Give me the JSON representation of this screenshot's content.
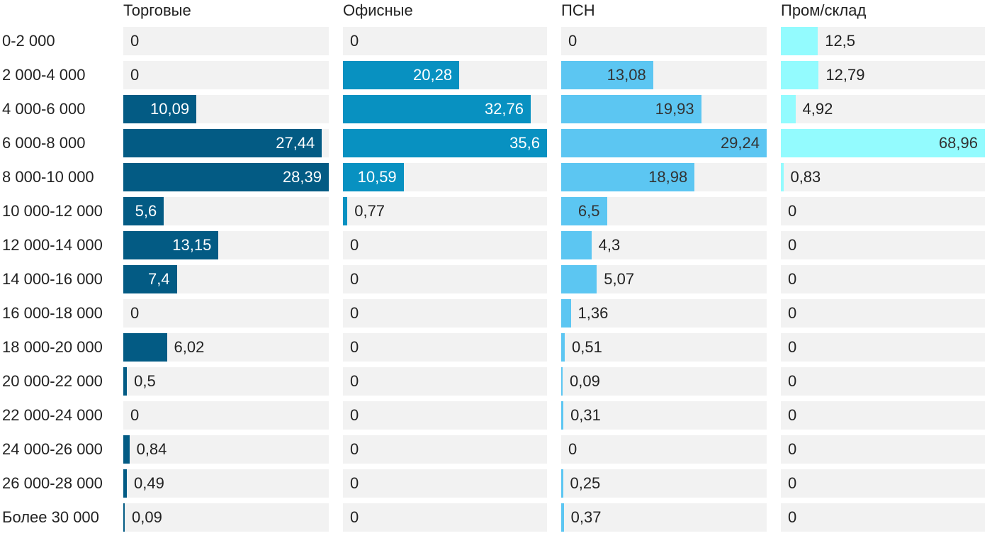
{
  "chart_data": {
    "type": "bar",
    "orientation": "horizontal",
    "layout": "small-multiples",
    "categories": [
      "0-2 000",
      "2 000-4 000",
      "4 000-6 000",
      "6 000-8 000",
      "8 000-10 000",
      "10 000-12 000",
      "12 000-14 000",
      "14 000-16 000",
      "16 000-18 000",
      "18 000-20 000",
      "20 000-22 000",
      "22 000-24 000",
      "24 000-26 000",
      "26 000-28 000",
      "Более 30 000"
    ],
    "series": [
      {
        "name": "Торговые",
        "color": "#035b84",
        "max": 28.39,
        "values": [
          0,
          0,
          10.09,
          27.44,
          28.39,
          5.6,
          13.15,
          7.4,
          0,
          6.02,
          0.5,
          0,
          0.84,
          0.49,
          0.09
        ],
        "labels": [
          "0",
          "0",
          "10,09",
          "27,44",
          "28,39",
          "5,6",
          "13,15",
          "7,4",
          "0",
          "6,02",
          "0,5",
          "0",
          "0,84",
          "0,49",
          "0,09"
        ]
      },
      {
        "name": "Офисные",
        "color": "#0891c1",
        "max": 35.6,
        "values": [
          0,
          20.28,
          32.76,
          35.6,
          10.59,
          0.77,
          0,
          0,
          0,
          0,
          0,
          0,
          0,
          0,
          0
        ],
        "labels": [
          "0",
          "20,28",
          "32,76",
          "35,6",
          "10,59",
          "0,77",
          "0",
          "0",
          "0",
          "0",
          "0",
          "0",
          "0",
          "0",
          "0"
        ]
      },
      {
        "name": "ПСН",
        "color": "#5cc6f2",
        "max": 29.24,
        "values": [
          0,
          13.08,
          19.93,
          29.24,
          18.98,
          6.5,
          4.3,
          5.07,
          1.36,
          0.51,
          0.09,
          0.31,
          0,
          0.25,
          0.37
        ],
        "labels": [
          "0",
          "13,08",
          "19,93",
          "29,24",
          "18,98",
          "6,5",
          "4,3",
          "5,07",
          "1,36",
          "0,51",
          "0,09",
          "0,31",
          "0",
          "0,25",
          "0,37"
        ]
      },
      {
        "name": "Пром/склад",
        "color": "#93fbfe",
        "max": 68.96,
        "values": [
          12.5,
          12.79,
          4.92,
          68.96,
          0.83,
          0,
          0,
          0,
          0,
          0,
          0,
          0,
          0,
          0,
          0
        ],
        "labels": [
          "12,5",
          "12,79",
          "4,92",
          "68,96",
          "0,83",
          "0",
          "0",
          "0",
          "0",
          "0",
          "0",
          "0",
          "0",
          "0",
          "0"
        ]
      }
    ],
    "label_inside_colors": [
      "#ffffff",
      "#ffffff",
      "#333333",
      "#333333"
    ],
    "title": "",
    "xlabel": "",
    "ylabel": "",
    "grid": false,
    "legend": "none"
  }
}
